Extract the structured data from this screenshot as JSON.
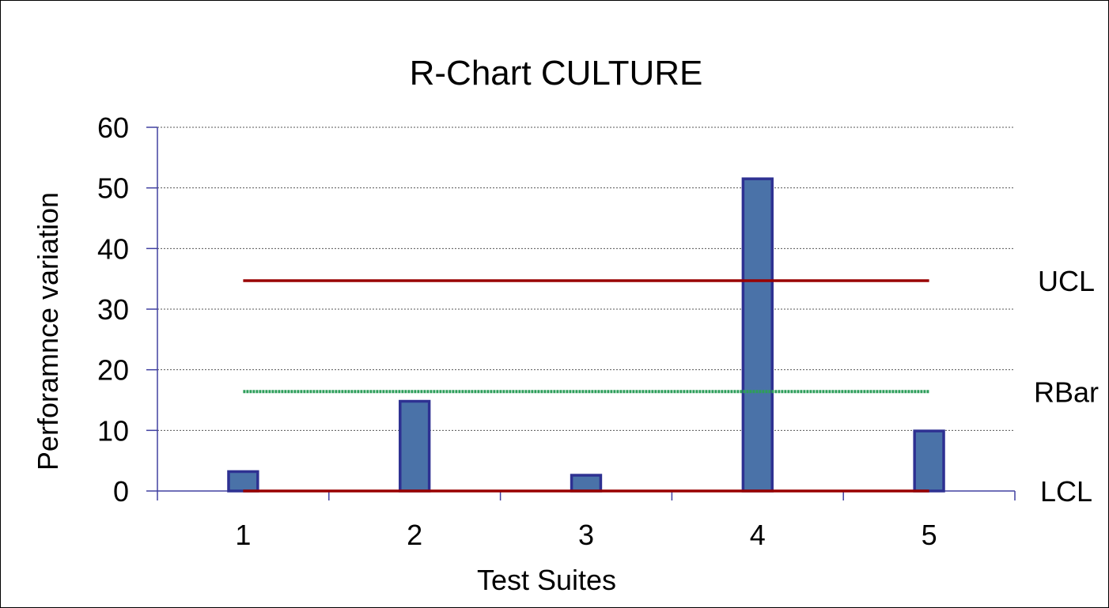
{
  "chart_data": {
    "type": "bar",
    "title": "R-Chart CULTURE",
    "xlabel": "Test Suites",
    "ylabel": "Perforamnce variation",
    "categories": [
      "1",
      "2",
      "3",
      "4",
      "5"
    ],
    "values": [
      3.2,
      14.8,
      2.6,
      51.5,
      9.9
    ],
    "ylim": [
      0,
      60
    ],
    "yticks": [
      0,
      10,
      20,
      30,
      40,
      50,
      60
    ],
    "grid": true,
    "control_lines": [
      {
        "name": "UCL",
        "value": 34.7,
        "color": "#990000",
        "style": "solid"
      },
      {
        "name": "RBar",
        "value": 16.4,
        "color": "#2e9e5a",
        "style": "dotted"
      },
      {
        "name": "LCL",
        "value": 0,
        "color": "#990000",
        "style": "solid"
      }
    ],
    "bar_fill": "#4a72a8",
    "bar_stroke": "#2e3192"
  }
}
